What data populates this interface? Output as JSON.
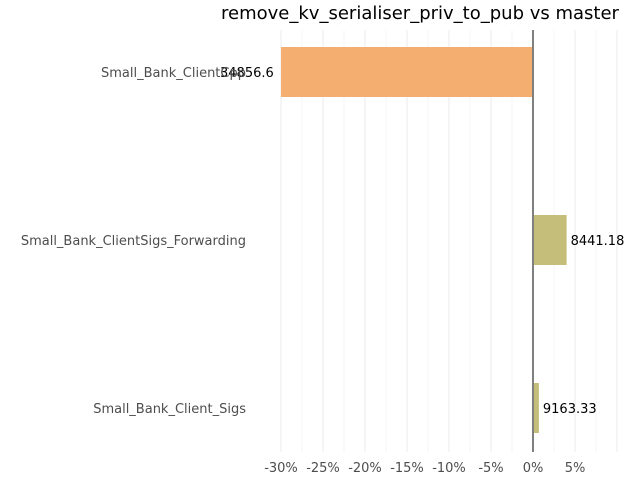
{
  "chart_data": {
    "type": "bar",
    "orientation": "horizontal",
    "title": "remove_kv_serialiser_priv_to_pub vs master",
    "xlabel": "",
    "ylabel": "",
    "categories": [
      "Small_Bank_ClientCpp",
      "Small_Bank_ClientSigs_Forwarding",
      "Small_Bank_Client_Sigs"
    ],
    "values_percent": [
      -30.0,
      4.0,
      0.7
    ],
    "value_labels": [
      "34856.6",
      "8441.18",
      "9163.33"
    ],
    "colors": [
      "#f4ae6f",
      "#c5be7a",
      "#c5be7a"
    ],
    "xlim": [
      -32,
      13
    ],
    "ticks": [
      -30,
      -25,
      -20,
      -15,
      -10,
      -5,
      0,
      5
    ],
    "tick_labels": [
      "-30%",
      "-25%",
      "-20%",
      "-15%",
      "-10%",
      "-5%",
      "0%",
      "5%"
    ],
    "grid": true,
    "zero_line_color": "#808080"
  }
}
